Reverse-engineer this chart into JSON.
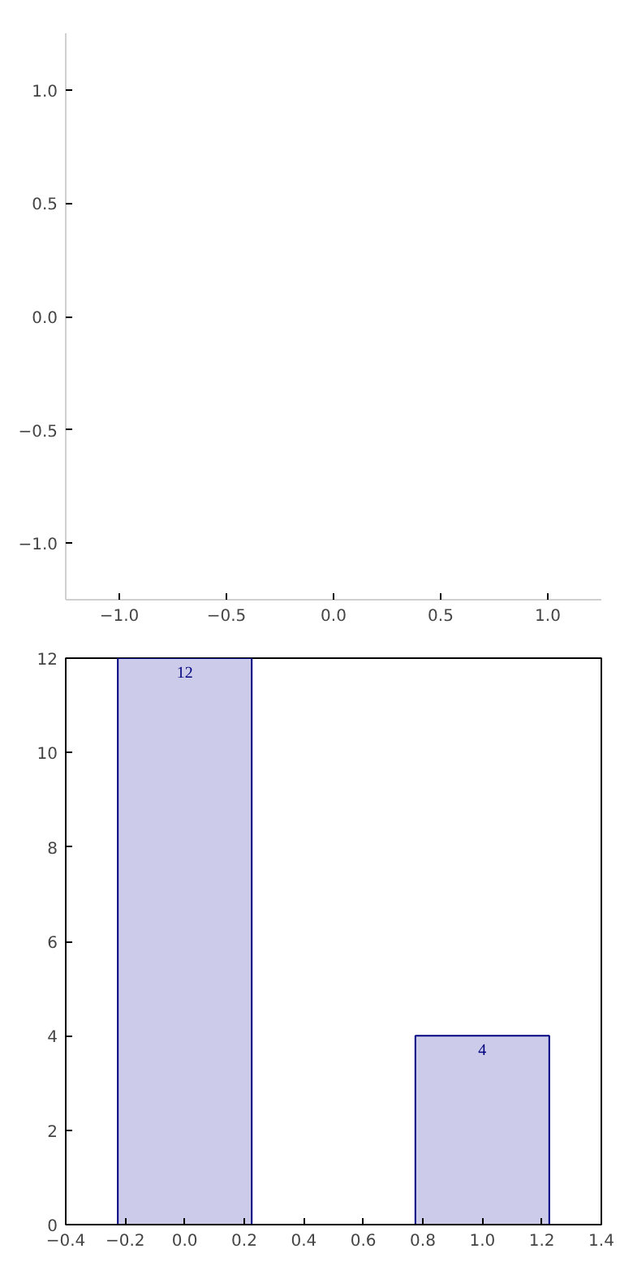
{
  "chart_data": [
    {
      "type": "scatter",
      "grid": false,
      "xlim": [
        -1.25,
        1.25
      ],
      "ylim": [
        -1.25,
        1.25
      ],
      "xticks": [
        {
          "value": -1,
          "label": "−1.0"
        },
        {
          "value": -0.5,
          "label": "−0.5"
        },
        {
          "value": 0,
          "label": "0.0"
        },
        {
          "value": 0.5,
          "label": "0.5"
        },
        {
          "value": 1,
          "label": "1.0"
        }
      ],
      "yticks": [
        {
          "value": -1,
          "label": "−1.0"
        },
        {
          "value": -0.5,
          "label": "−0.5"
        },
        {
          "value": 0,
          "label": "0.0"
        },
        {
          "value": 0.5,
          "label": "0.5"
        },
        {
          "value": 1,
          "label": "1.0"
        }
      ]
    },
    {
      "type": "bar",
      "x": [
        0,
        1
      ],
      "values": [
        12,
        4
      ],
      "color": "#ccccea",
      "data_labels": true,
      "grid": false,
      "xlim": [
        -0.4,
        1.4
      ],
      "ylim": [
        0,
        12
      ],
      "xticks": [
        {
          "value": -0.4,
          "label": "−0.4"
        },
        {
          "value": -0.2,
          "label": "−0.2"
        },
        {
          "value": 0,
          "label": "0.0"
        },
        {
          "value": 0.2,
          "label": "0.2"
        },
        {
          "value": 0.4,
          "label": "0.4"
        },
        {
          "value": 0.6,
          "label": "0.6"
        },
        {
          "value": 0.8,
          "label": "0.8"
        },
        {
          "value": 1,
          "label": "1.0"
        },
        {
          "value": 1.2,
          "label": "1.2"
        },
        {
          "value": 1.4,
          "label": "1.4"
        }
      ],
      "yticks": [
        0,
        2,
        4,
        6,
        8,
        10,
        12
      ]
    }
  ]
}
